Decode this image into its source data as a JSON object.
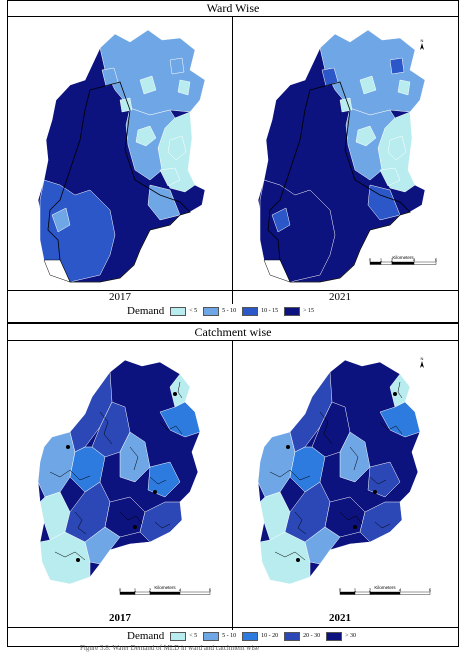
{
  "sections": {
    "ward": {
      "title": "Ward Wise",
      "year_left": "2017",
      "year_right": "2021",
      "legend_label": "Demand",
      "legend": [
        {
          "label": "< 5",
          "color": "#b9ecef"
        },
        {
          "label": "5 - 10",
          "color": "#6fa7e6"
        },
        {
          "label": "10 - 15",
          "color": "#2c57c9"
        },
        {
          "label": "> 15",
          "color": "#0c127e"
        }
      ]
    },
    "catchment": {
      "title": "Catchment wise",
      "year_left": "2017",
      "year_right": "2021",
      "legend_label": "Demand",
      "legend": [
        {
          "label": "< 5",
          "color": "#b9ecef"
        },
        {
          "label": "5 - 10",
          "color": "#6fa7e6"
        },
        {
          "label": "10 - 20",
          "color": "#2e7be0"
        },
        {
          "label": "20 - 30",
          "color": "#2c48b6"
        },
        {
          "label": "> 30",
          "color": "#0c127e"
        }
      ]
    }
  },
  "scale_bar": {
    "unit": "Kilometers",
    "ticks": [
      "0",
      "1",
      "2",
      "4",
      "6"
    ]
  },
  "north_arrow": {
    "letter": "N",
    "icon": "north-arrow-icon"
  },
  "caption": "Figure 3.8: Water Demand of MLD in ward and catchment wise"
}
